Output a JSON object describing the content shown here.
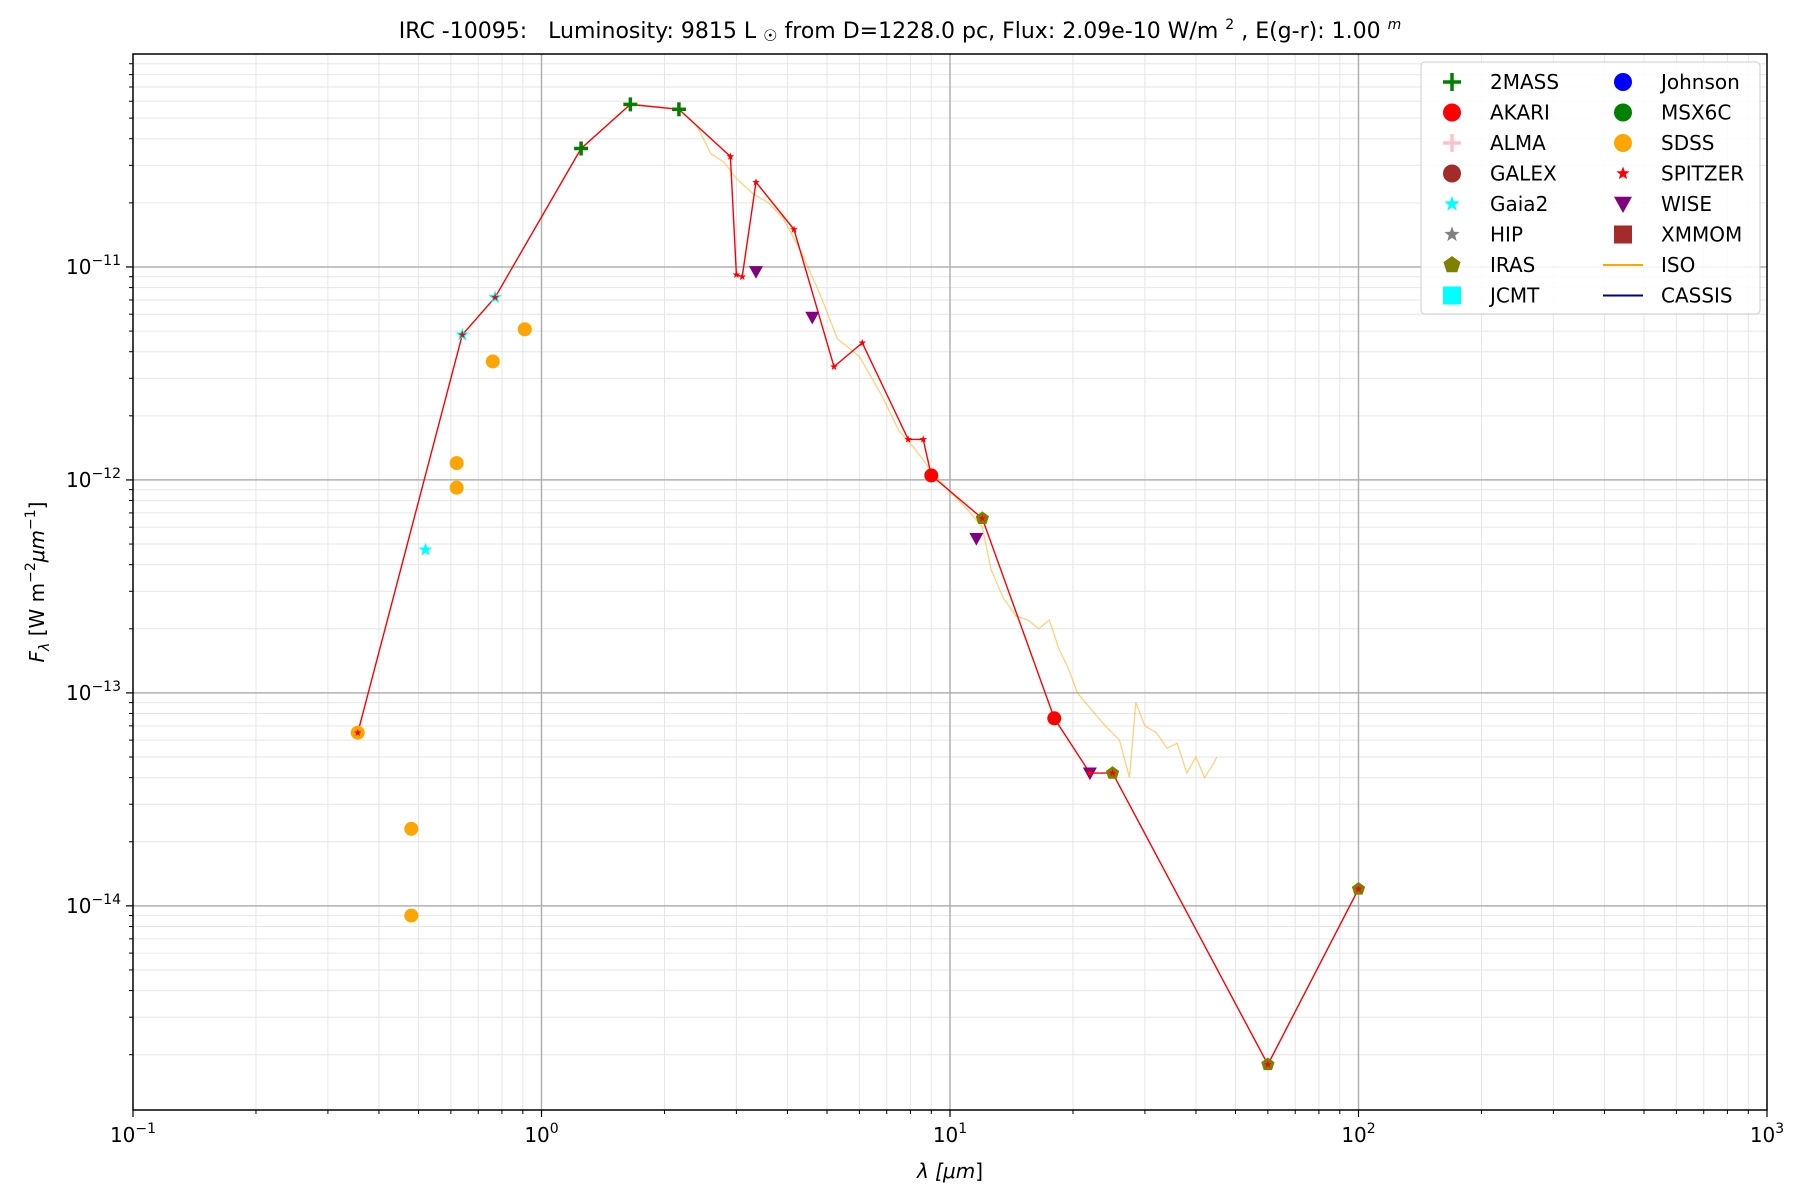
{
  "chart_data": {
    "type": "scatter",
    "title": {
      "object": "IRC -10095:",
      "lum_prefix": "Luminosity: 9815 L",
      "lum_symbol": "☉",
      "dist": " from D=1228.0 pc, Flux: 2.09e-10 W/m",
      "flux_sup": "2",
      "ext": ", E(g-r): 1.00",
      "ext_sup": "m"
    },
    "xlabel": {
      "main": "λ [",
      "unit": "μm",
      "close": "]"
    },
    "ylabel": {
      "main": "F",
      "sub": "λ",
      "rest": " [W m",
      "exp1": "−2",
      "unit": "μm",
      "exp2": "−1",
      "close": "]"
    },
    "x_scale": "log",
    "y_scale": "log",
    "xlim": [
      0.1,
      1000
    ],
    "ylim": [
      1.1e-15,
      1e-10
    ],
    "x_ticks": [
      {
        "value": 0.1,
        "base": "10",
        "exp": "−1"
      },
      {
        "value": 1,
        "base": "10",
        "exp": "0"
      },
      {
        "value": 10,
        "base": "10",
        "exp": "1"
      },
      {
        "value": 100,
        "base": "10",
        "exp": "2"
      },
      {
        "value": 1000,
        "base": "10",
        "exp": "3"
      }
    ],
    "y_ticks": [
      {
        "value": 1e-14,
        "base": "10",
        "exp": "−14"
      },
      {
        "value": 1e-13,
        "base": "10",
        "exp": "−13"
      },
      {
        "value": 1e-12,
        "base": "10",
        "exp": "−12"
      },
      {
        "value": 1e-11,
        "base": "10",
        "exp": "−11"
      }
    ],
    "grid": true,
    "legend_position": "top-right",
    "legend": [
      {
        "label": "2MASS",
        "marker": "plus",
        "color": "#008000"
      },
      {
        "label": "AKARI",
        "marker": "circle",
        "color": "#ff0000"
      },
      {
        "label": "ALMA",
        "marker": "plus",
        "color": "#ffc0cb"
      },
      {
        "label": "GALEX",
        "marker": "circle",
        "color": "#a52a2a"
      },
      {
        "label": "Gaia2",
        "marker": "star",
        "color": "#00ffff"
      },
      {
        "label": "HIP",
        "marker": "star",
        "color": "#808080"
      },
      {
        "label": "IRAS",
        "marker": "pentagon",
        "color": "#808000"
      },
      {
        "label": "JCMT",
        "marker": "square",
        "color": "#00ffff"
      },
      {
        "label": "Johnson",
        "marker": "circle",
        "color": "#0000ff"
      },
      {
        "label": "MSX6C",
        "marker": "circle",
        "color": "#008000"
      },
      {
        "label": "SDSS",
        "marker": "circle",
        "color": "#ffa500"
      },
      {
        "label": "SPITZER",
        "marker": "star",
        "color": "#ff0000"
      },
      {
        "label": "WISE",
        "marker": "triangle-down",
        "color": "#800080"
      },
      {
        "label": "XMMOM",
        "marker": "square",
        "color": "#a52a2a"
      },
      {
        "label": "ISO",
        "marker": "line",
        "color": "#ffa500"
      },
      {
        "label": "CASSIS",
        "marker": "line",
        "color": "#00008b"
      }
    ],
    "sed_line": {
      "color": "#ff0000",
      "points": [
        [
          0.355,
          6.5e-14
        ],
        [
          0.64,
          4.8e-12
        ],
        [
          0.77,
          7.2e-12
        ],
        [
          1.25,
          3.6e-11
        ],
        [
          1.65,
          5.8e-11
        ],
        [
          2.17,
          5.5e-11
        ],
        [
          2.9,
          3.3e-11
        ],
        [
          3.0,
          9.2e-12
        ],
        [
          3.1,
          9e-12
        ],
        [
          3.35,
          2.5e-11
        ],
        [
          4.15,
          1.5e-11
        ],
        [
          5.2,
          3.4e-12
        ],
        [
          6.1,
          4.4e-12
        ],
        [
          7.9,
          1.55e-12
        ],
        [
          8.6,
          1.55e-12
        ],
        [
          9.0,
          1.05e-12
        ],
        [
          12.0,
          6.6e-13
        ],
        [
          18.0,
          7.6e-14
        ],
        [
          22.0,
          4.2e-14
        ],
        [
          25.0,
          4.2e-14
        ],
        [
          60.0,
          1.8e-15
        ],
        [
          100.0,
          1.2e-14
        ]
      ]
    },
    "iso_spectrum": {
      "color": "#ffa500",
      "points": [
        [
          2.4,
          4.6e-11
        ],
        [
          2.6,
          3.4e-11
        ],
        [
          2.8,
          3.1e-11
        ],
        [
          3.0,
          2.6e-11
        ],
        [
          3.3,
          2.2e-11
        ],
        [
          3.6,
          2e-11
        ],
        [
          3.9,
          1.7e-11
        ],
        [
          4.3,
          1.2e-11
        ],
        [
          4.8,
          7.5e-12
        ],
        [
          5.3,
          4.6e-12
        ],
        [
          6.0,
          3.8e-12
        ],
        [
          6.8,
          2.5e-12
        ],
        [
          7.5,
          1.7e-12
        ],
        [
          8.2,
          1.4e-12
        ],
        [
          9.0,
          1.1e-12
        ],
        [
          10.0,
          8.8e-13
        ],
        [
          11.0,
          7.3e-13
        ],
        [
          12.0,
          6e-13
        ],
        [
          12.6,
          3.8e-13
        ],
        [
          13.5,
          2.8e-13
        ],
        [
          14.5,
          2.3e-13
        ],
        [
          15.5,
          2.2e-13
        ],
        [
          16.5,
          2e-13
        ],
        [
          17.5,
          2.2e-13
        ],
        [
          18.5,
          1.6e-13
        ],
        [
          19.5,
          1.3e-13
        ],
        [
          20.5,
          1e-13
        ],
        [
          22.0,
          8.5e-14
        ],
        [
          24.0,
          7e-14
        ],
        [
          26.0,
          6e-14
        ],
        [
          27.5,
          4e-14
        ],
        [
          28.5,
          9e-14
        ],
        [
          30.0,
          7e-14
        ],
        [
          32.0,
          6.5e-14
        ],
        [
          34.0,
          5.5e-14
        ],
        [
          36.0,
          5.8e-14
        ],
        [
          38.0,
          4.2e-14
        ],
        [
          40.0,
          5e-14
        ],
        [
          42.0,
          4e-14
        ],
        [
          44.0,
          4.6e-14
        ],
        [
          45.0,
          5e-14
        ]
      ]
    },
    "points": [
      {
        "s": "2MASS",
        "x": 1.25,
        "y": 3.6e-11
      },
      {
        "s": "2MASS",
        "x": 1.65,
        "y": 5.8e-11
      },
      {
        "s": "2MASS",
        "x": 2.17,
        "y": 5.5e-11
      },
      {
        "s": "AKARI",
        "x": 9.0,
        "y": 1.05e-12
      },
      {
        "s": "AKARI",
        "x": 18.0,
        "y": 7.6e-14
      },
      {
        "s": "Gaia2",
        "x": 0.64,
        "y": 4.8e-12
      },
      {
        "s": "Gaia2",
        "x": 0.77,
        "y": 7.2e-12
      },
      {
        "s": "Gaia2",
        "x": 0.52,
        "y": 4.7e-13
      },
      {
        "s": "IRAS",
        "x": 12.0,
        "y": 6.6e-13
      },
      {
        "s": "IRAS",
        "x": 25.0,
        "y": 4.2e-14
      },
      {
        "s": "IRAS",
        "x": 60.0,
        "y": 1.8e-15
      },
      {
        "s": "IRAS",
        "x": 100.0,
        "y": 1.2e-14
      },
      {
        "s": "SDSS",
        "x": 0.355,
        "y": 6.5e-14
      },
      {
        "s": "SDSS",
        "x": 0.48,
        "y": 2.3e-14
      },
      {
        "s": "SDSS",
        "x": 0.48,
        "y": 9e-15
      },
      {
        "s": "SDSS",
        "x": 0.62,
        "y": 1.2e-12
      },
      {
        "s": "SDSS",
        "x": 0.62,
        "y": 9.2e-13
      },
      {
        "s": "SDSS",
        "x": 0.76,
        "y": 3.6e-12
      },
      {
        "s": "SDSS",
        "x": 0.91,
        "y": 5.1e-12
      },
      {
        "s": "WISE",
        "x": 3.35,
        "y": 9.5e-12
      },
      {
        "s": "WISE",
        "x": 4.6,
        "y": 5.8e-12
      },
      {
        "s": "WISE",
        "x": 11.6,
        "y": 5.3e-13
      },
      {
        "s": "WISE",
        "x": 22.0,
        "y": 4.2e-14
      },
      {
        "s": "SPITZER",
        "x": 0.355,
        "y": 6.5e-14
      },
      {
        "s": "SPITZER",
        "x": 0.64,
        "y": 4.8e-12
      },
      {
        "s": "SPITZER",
        "x": 0.77,
        "y": 7.2e-12
      },
      {
        "s": "SPITZER",
        "x": 2.9,
        "y": 3.3e-11
      },
      {
        "s": "SPITZER",
        "x": 3.0,
        "y": 9.2e-12
      },
      {
        "s": "SPITZER",
        "x": 3.1,
        "y": 9e-12
      },
      {
        "s": "SPITZER",
        "x": 3.35,
        "y": 2.5e-11
      },
      {
        "s": "SPITZER",
        "x": 4.15,
        "y": 1.5e-11
      },
      {
        "s": "SPITZER",
        "x": 5.2,
        "y": 3.4e-12
      },
      {
        "s": "SPITZER",
        "x": 6.1,
        "y": 4.4e-12
      },
      {
        "s": "SPITZER",
        "x": 7.9,
        "y": 1.55e-12
      },
      {
        "s": "SPITZER",
        "x": 8.6,
        "y": 1.55e-12
      },
      {
        "s": "SPITZER",
        "x": 12.0,
        "y": 6.6e-13
      },
      {
        "s": "SPITZER",
        "x": 22.0,
        "y": 4.2e-14
      },
      {
        "s": "SPITZER",
        "x": 25.0,
        "y": 4.2e-14
      },
      {
        "s": "SPITZER",
        "x": 60.0,
        "y": 1.8e-15
      },
      {
        "s": "SPITZER",
        "x": 100.0,
        "y": 1.2e-14
      }
    ]
  }
}
